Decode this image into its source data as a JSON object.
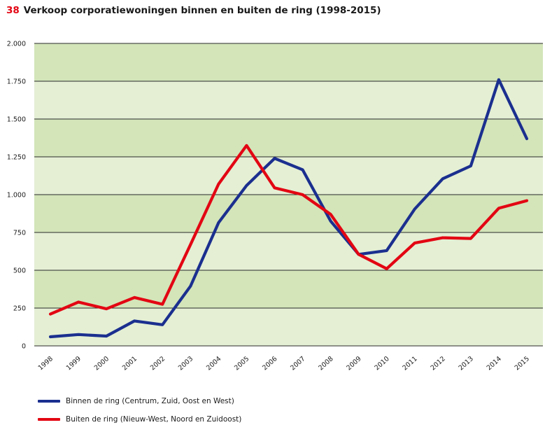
{
  "figure": {
    "number": "38",
    "title": "Verkoop corporatiewoningen binnen en buiten de ring (1998-2015)"
  },
  "chart_data": {
    "type": "line",
    "title": "Verkoop corporatiewoningen binnen en buiten de ring (1998-2015)",
    "xlabel": "",
    "ylabel": "",
    "x": [
      "1998",
      "1999",
      "2000",
      "2001",
      "2002",
      "2003",
      "2004",
      "2005",
      "2006",
      "2007",
      "2008",
      "2009",
      "2010",
      "2011",
      "2012",
      "2013",
      "2014",
      "2015"
    ],
    "y_ticks": [
      0,
      250,
      500,
      750,
      1000,
      1250,
      1500,
      1750,
      2000
    ],
    "y_tick_labels": [
      "0",
      "250",
      "500",
      "750",
      "1.000",
      "1.250",
      "1.500",
      "1.750",
      "2.000"
    ],
    "ylim": [
      0,
      2000
    ],
    "grid": "horizontal",
    "background_bands": [
      "#e4efd4",
      "#d3e5b9"
    ],
    "legend_position": "bottom-left",
    "series": [
      {
        "name": "Binnen de ring (Centrum, Zuid, Oost en West)",
        "color": "#1b2f8f",
        "values": [
          60,
          75,
          65,
          165,
          140,
          395,
          815,
          1060,
          1240,
          1165,
          825,
          605,
          630,
          905,
          1105,
          1190,
          1760,
          1370
        ]
      },
      {
        "name": "Buiten de ring (Nieuw-West, Noord en Zuidoost)",
        "color": "#e30613",
        "values": [
          210,
          290,
          245,
          320,
          275,
          670,
          1070,
          1325,
          1045,
          1000,
          870,
          605,
          510,
          680,
          715,
          710,
          910,
          960
        ]
      }
    ]
  }
}
